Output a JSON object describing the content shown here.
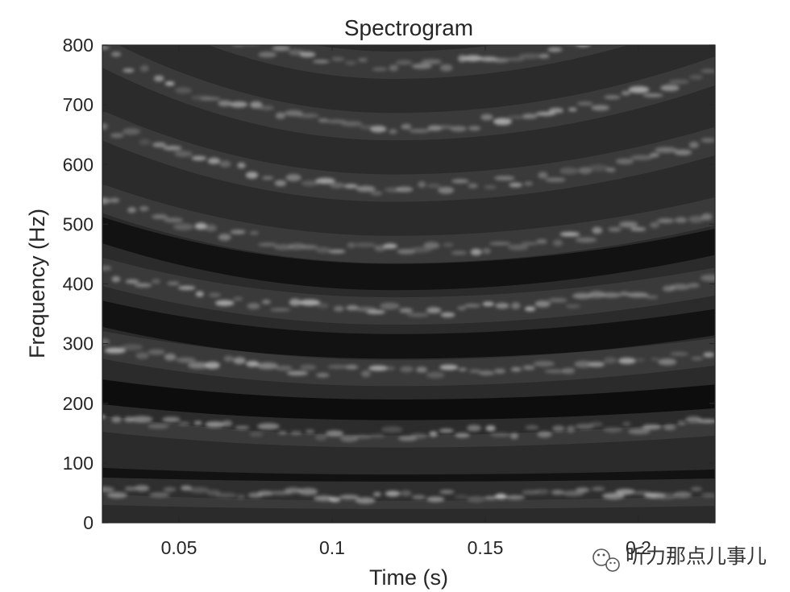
{
  "chart_data": {
    "type": "heatmap",
    "title": "Spectrogram",
    "xlabel": "Time (s)",
    "ylabel": "Frequency (Hz)",
    "xlim": [
      0.025,
      0.225
    ],
    "ylim": [
      0,
      800
    ],
    "xticks": [
      0.05,
      0.1,
      0.15,
      0.2
    ],
    "xtick_labels": [
      "0.05",
      "0.1",
      "0.15",
      "0.2"
    ],
    "yticks": [
      0,
      100,
      200,
      300,
      400,
      500,
      600,
      700,
      800
    ],
    "ytick_labels": [
      "0",
      "100",
      "200",
      "300",
      "400",
      "500",
      "600",
      "700",
      "800"
    ],
    "colormap": "gray",
    "grid": false,
    "harmonics": {
      "f0_start": 125,
      "f0_min": 105,
      "f0_end": 120,
      "min_time": 0.12
    },
    "bright_bands_hz": [
      [
        0.025,
        [
          45,
          165,
          285,
          410,
          535,
          650,
          770
        ]
      ],
      [
        0.075,
        [
          35,
          140,
          250,
          355,
          460,
          570,
          675,
          780
        ]
      ],
      [
        0.125,
        [
          35,
          135,
          240,
          345,
          450,
          550,
          660,
          760
        ]
      ],
      [
        0.175,
        [
          35,
          140,
          250,
          360,
          470,
          580,
          690
        ]
      ],
      [
        0.225,
        [
          40,
          160,
          275,
          390,
          510,
          630,
          750
        ]
      ]
    ],
    "dark_bands_hz": [
      [
        0.025,
        [
          115,
          240,
          370
        ]
      ],
      [
        0.125,
        [
          95,
          195,
          405
        ]
      ],
      [
        0.225,
        [
          105,
          240,
          370
        ]
      ]
    ]
  },
  "watermark": {
    "text": "听力那点儿事儿",
    "icon": "wechat-icon"
  }
}
